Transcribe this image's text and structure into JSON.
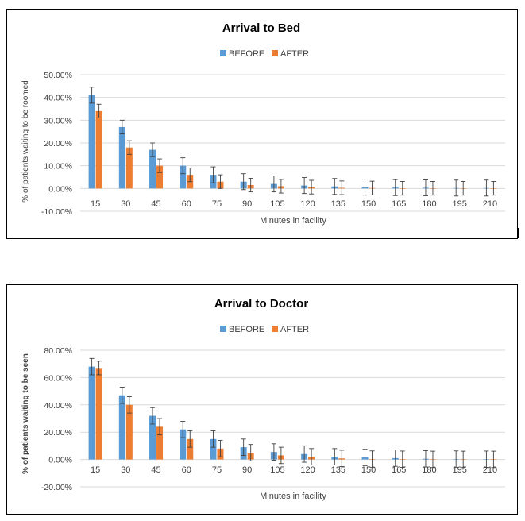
{
  "colors": {
    "before": "#5B9BD5",
    "after": "#ED7D31",
    "grid": "#D9D9D9",
    "text": "#404040",
    "error_bar": "#404040"
  },
  "chart_data": [
    {
      "type": "bar",
      "title": "Arrival to Bed",
      "xlabel": "Minutes in facility",
      "ylabel": "% of patients waiting to be roomed",
      "legend_position": "top-center",
      "grid": true,
      "ylim": [
        -0.1,
        0.5
      ],
      "yticks": [
        -0.1,
        0.0,
        0.1,
        0.2,
        0.3,
        0.4,
        0.5
      ],
      "ytick_labels": [
        "-10.00%",
        "0.00%",
        "10.00%",
        "20.00%",
        "30.00%",
        "40.00%",
        "50.00%"
      ],
      "categories": [
        "15",
        "30",
        "45",
        "60",
        "75",
        "90",
        "105",
        "120",
        "135",
        "150",
        "165",
        "180",
        "195",
        "210"
      ],
      "series": [
        {
          "name": "BEFORE",
          "values": [
            0.41,
            0.27,
            0.17,
            0.1,
            0.06,
            0.03,
            0.02,
            0.013,
            0.009,
            0.006,
            0.004,
            0.003,
            0.002,
            0.002
          ],
          "error": [
            0.035,
            0.03,
            0.03,
            0.035,
            0.035,
            0.035,
            0.035,
            0.035,
            0.035,
            0.035,
            0.035,
            0.035,
            0.035,
            0.035
          ]
        },
        {
          "name": "AFTER",
          "values": [
            0.34,
            0.18,
            0.1,
            0.06,
            0.03,
            0.015,
            0.01,
            0.006,
            0.003,
            0.002,
            0.001,
            0.001,
            0.001,
            0.001
          ],
          "error": [
            0.03,
            0.03,
            0.03,
            0.03,
            0.03,
            0.03,
            0.03,
            0.03,
            0.03,
            0.03,
            0.03,
            0.03,
            0.03,
            0.03
          ]
        }
      ]
    },
    {
      "type": "bar",
      "title": "Arrival to Doctor",
      "xlabel": "Minutes in facility",
      "ylabel": "% of patients waiting to be seen",
      "legend_position": "top-center",
      "grid": true,
      "ylim": [
        -0.2,
        0.8
      ],
      "yticks": [
        -0.2,
        0.0,
        0.2,
        0.4,
        0.6,
        0.8
      ],
      "ytick_labels": [
        "-20.00%",
        "0.00%",
        "20.00%",
        "40.00%",
        "60.00%",
        "80.00%"
      ],
      "categories": [
        "15",
        "30",
        "45",
        "60",
        "75",
        "90",
        "105",
        "120",
        "135",
        "150",
        "165",
        "180",
        "195",
        "210"
      ],
      "series": [
        {
          "name": "BEFORE",
          "values": [
            0.68,
            0.47,
            0.32,
            0.22,
            0.15,
            0.09,
            0.055,
            0.04,
            0.02,
            0.015,
            0.01,
            0.005,
            0.003,
            0.002
          ],
          "error": [
            0.06,
            0.06,
            0.06,
            0.06,
            0.06,
            0.06,
            0.06,
            0.06,
            0.06,
            0.06,
            0.06,
            0.06,
            0.06,
            0.06
          ]
        },
        {
          "name": "AFTER",
          "values": [
            0.67,
            0.4,
            0.24,
            0.15,
            0.08,
            0.05,
            0.03,
            0.02,
            0.008,
            0.003,
            0.002,
            0.001,
            0.001,
            0.001
          ],
          "error": [
            0.05,
            0.06,
            0.06,
            0.06,
            0.06,
            0.06,
            0.06,
            0.06,
            0.06,
            0.06,
            0.06,
            0.06,
            0.06,
            0.06
          ]
        }
      ]
    }
  ]
}
